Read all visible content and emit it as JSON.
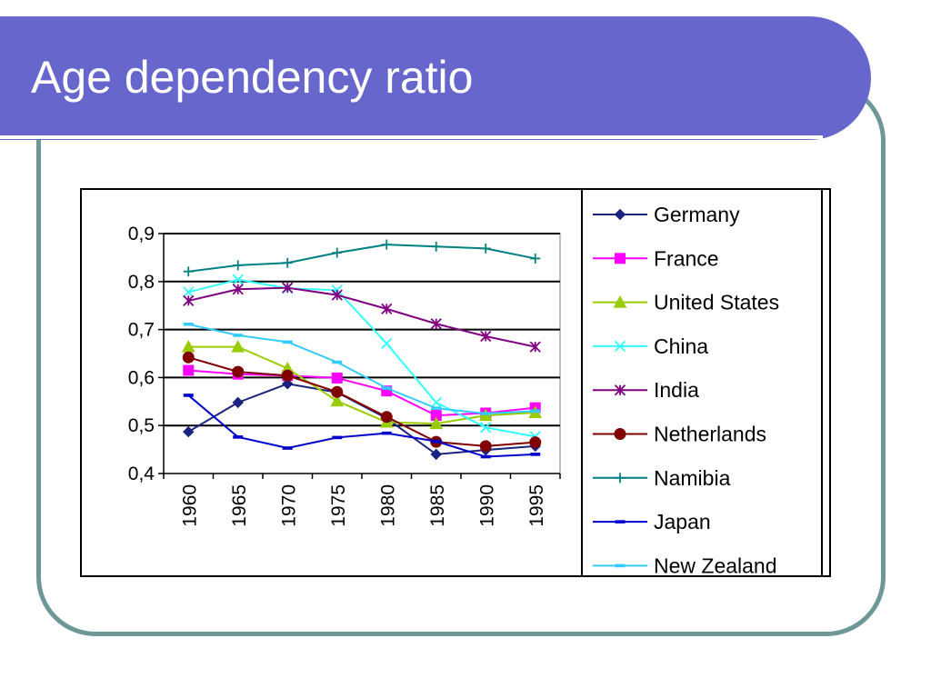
{
  "slide": {
    "title": "Age dependency ratio",
    "colors": {
      "banner": "#6666cc",
      "frame": "#6e9797",
      "title_text": "#ffffff"
    }
  },
  "chart_data": {
    "type": "line",
    "title": "",
    "xlabel": "",
    "ylabel": "",
    "x": [
      "1960",
      "1965",
      "1970",
      "1975",
      "1980",
      "1985",
      "1990",
      "1995"
    ],
    "y_ticks": [
      "0,4",
      "0,5",
      "0,6",
      "0,7",
      "0,8",
      "0,9"
    ],
    "ylim": [
      0.4,
      0.9
    ],
    "grid": "horizontal",
    "legend": "right",
    "series": [
      {
        "name": "Germany",
        "color": "#1a237e",
        "marker": "diamond",
        "values": [
          0.487,
          0.548,
          0.587,
          0.569,
          0.515,
          0.44,
          0.449,
          0.457
        ]
      },
      {
        "name": "France",
        "color": "#ff00ff",
        "marker": "square",
        "values": [
          0.615,
          0.607,
          0.604,
          0.599,
          0.572,
          0.521,
          0.526,
          0.537
        ]
      },
      {
        "name": "United States",
        "color": "#99cc00",
        "marker": "triangle",
        "values": [
          0.664,
          0.664,
          0.619,
          0.551,
          0.507,
          0.504,
          0.521,
          0.527
        ]
      },
      {
        "name": "China",
        "color": "#33ffff",
        "marker": "x",
        "values": [
          0.778,
          0.804,
          0.786,
          0.782,
          0.671,
          0.548,
          0.496,
          0.477
        ]
      },
      {
        "name": "India",
        "color": "#800080",
        "marker": "star",
        "values": [
          0.76,
          0.784,
          0.787,
          0.772,
          0.743,
          0.712,
          0.686,
          0.664
        ]
      },
      {
        "name": "Netherlands",
        "color": "#800000",
        "marker": "circle",
        "values": [
          0.642,
          0.612,
          0.604,
          0.57,
          0.518,
          0.466,
          0.457,
          0.465
        ]
      },
      {
        "name": "Namibia",
        "color": "#008080",
        "marker": "plus",
        "values": [
          0.821,
          0.834,
          0.839,
          0.86,
          0.877,
          0.873,
          0.869,
          0.848
        ]
      },
      {
        "name": "Japan",
        "color": "#0000cc",
        "marker": "dash",
        "values": [
          0.563,
          0.476,
          0.453,
          0.475,
          0.484,
          0.467,
          0.435,
          0.44
        ]
      },
      {
        "name": "New Zealand",
        "color": "#33ccff",
        "marker": "dash",
        "values": [
          0.711,
          0.688,
          0.674,
          0.632,
          0.578,
          0.536,
          0.525,
          0.53
        ]
      }
    ]
  }
}
